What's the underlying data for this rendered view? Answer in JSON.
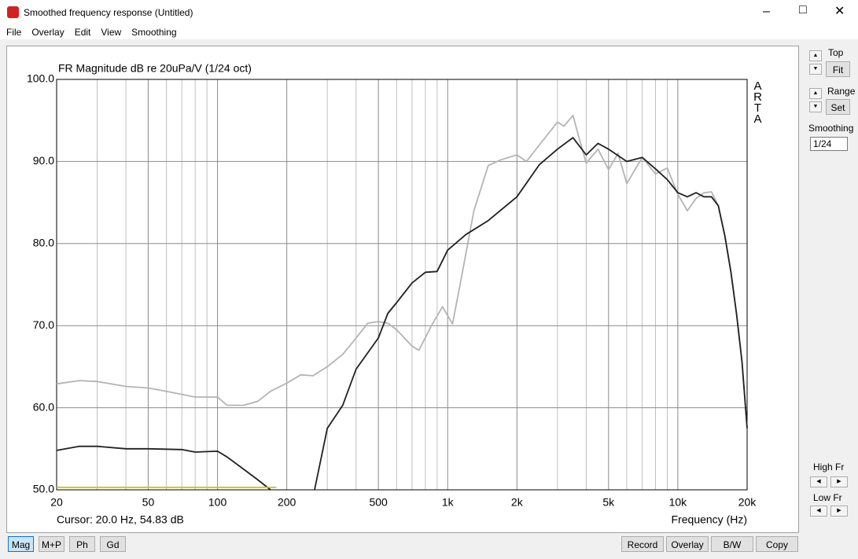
{
  "window": {
    "title": "Smoothed frequency response (Untitled)"
  },
  "menu": [
    "File",
    "Overlay",
    "Edit",
    "View",
    "Smoothing"
  ],
  "side_panel": {
    "top": "Top",
    "fit": "Fit",
    "range": "Range",
    "set": "Set",
    "smoothing": "Smoothing",
    "smoothing_value": "1/24",
    "high_fr": "High Fr",
    "low_fr": "Low Fr"
  },
  "bottom_left_buttons": [
    "Mag",
    "M+P",
    "Ph",
    "Gd"
  ],
  "bottom_right_buttons": [
    "Record",
    "Overlay",
    "B/W",
    "Copy"
  ],
  "cursor": "Cursor: 20.0 Hz, 54.83 dB",
  "chart_data": {
    "type": "line",
    "title": "FR Magnitude dB re 20uPa/V (1/24 oct)",
    "side_label": "ARTA",
    "x_label": "Frequency (Hz)",
    "x_scale": "log",
    "grid": true,
    "xlim": [
      20,
      20000
    ],
    "ylim": [
      50,
      100
    ],
    "xticks": [
      20,
      50,
      100,
      200,
      500,
      {
        "value": 1000,
        "label": "1k"
      },
      {
        "value": 2000,
        "label": "2k"
      },
      {
        "value": 5000,
        "label": "5k"
      },
      {
        "value": 10000,
        "label": "10k"
      },
      {
        "value": 20000,
        "label": "20k"
      }
    ],
    "minor_xgrid": [
      30,
      40,
      60,
      70,
      80,
      90,
      300,
      400,
      600,
      700,
      800,
      900,
      3000,
      4000,
      6000,
      7000,
      8000,
      9000
    ],
    "yticks": [
      {
        "value": 50,
        "label": "50.0"
      },
      {
        "value": 60,
        "label": "60.0"
      },
      {
        "value": 70,
        "label": "70.0"
      },
      {
        "value": 80,
        "label": "80.0"
      },
      {
        "value": 90,
        "label": "90.0"
      },
      {
        "value": 100,
        "label": "100.0"
      }
    ],
    "series": [
      {
        "color": "#b4b4b4",
        "x": [
          20,
          25,
          30,
          40,
          50,
          60,
          80,
          100,
          110,
          130,
          150,
          170,
          200,
          230,
          260,
          300,
          350,
          400,
          450,
          500,
          550,
          600,
          700,
          750,
          850,
          950,
          1050,
          1150,
          1300,
          1500,
          1700,
          2000,
          2200,
          2500,
          3000,
          3200,
          3500,
          3800,
          4000,
          4500,
          5000,
          5500,
          6000,
          7000,
          8000,
          9000,
          10000,
          11000,
          12000,
          13000,
          14000,
          15000,
          16000,
          17000,
          18000,
          19000,
          20000
        ],
        "values": [
          62.9,
          63.3,
          63.2,
          62.6,
          62.4,
          62.0,
          61.3,
          61.3,
          60.3,
          60.3,
          60.8,
          62.0,
          63.0,
          64.0,
          63.9,
          65.0,
          66.5,
          68.5,
          70.3,
          70.5,
          70.3,
          69.5,
          67.5,
          67.0,
          70.0,
          72.3,
          70.2,
          76.0,
          84.0,
          89.5,
          90.2,
          90.8,
          90.0,
          92.0,
          94.8,
          94.3,
          95.6,
          92.0,
          89.8,
          91.5,
          89.0,
          91.0,
          87.3,
          90.5,
          88.5,
          89.2,
          86.0,
          84.0,
          85.5,
          86.2,
          86.3,
          84.6,
          81.0,
          76.6,
          71.4,
          65.6,
          57.5
        ]
      },
      {
        "color": "#202020",
        "x": [
          20,
          25,
          30,
          40,
          50,
          70,
          80,
          100,
          110,
          130,
          150,
          170,
          200,
          264,
          300,
          350,
          400,
          500,
          550,
          600,
          700,
          800,
          900,
          1000,
          1200,
          1500,
          2000,
          2500,
          3000,
          3500,
          4000,
          4500,
          5000,
          6000,
          7000,
          8000,
          9000,
          10000,
          11000,
          12000,
          13000,
          14000,
          15000,
          16000,
          17000,
          18000,
          19000,
          20000
        ],
        "values": [
          54.8,
          55.3,
          55.3,
          55.0,
          55.0,
          54.9,
          54.6,
          54.7,
          54.0,
          52.5,
          51.2,
          50.0,
          null,
          50.0,
          57.5,
          60.3,
          64.7,
          68.5,
          71.5,
          72.8,
          75.2,
          76.5,
          76.6,
          79.2,
          81.1,
          82.8,
          85.7,
          89.6,
          91.5,
          92.9,
          90.8,
          92.2,
          91.5,
          90.0,
          90.5,
          89.1,
          87.8,
          86.2,
          85.7,
          86.2,
          85.7,
          85.7,
          84.6,
          81.0,
          76.6,
          71.4,
          65.6,
          57.5
        ]
      },
      {
        "color": "#c8c800",
        "x": [
          20,
          180
        ],
        "values": [
          50.3,
          50.3
        ]
      }
    ]
  }
}
